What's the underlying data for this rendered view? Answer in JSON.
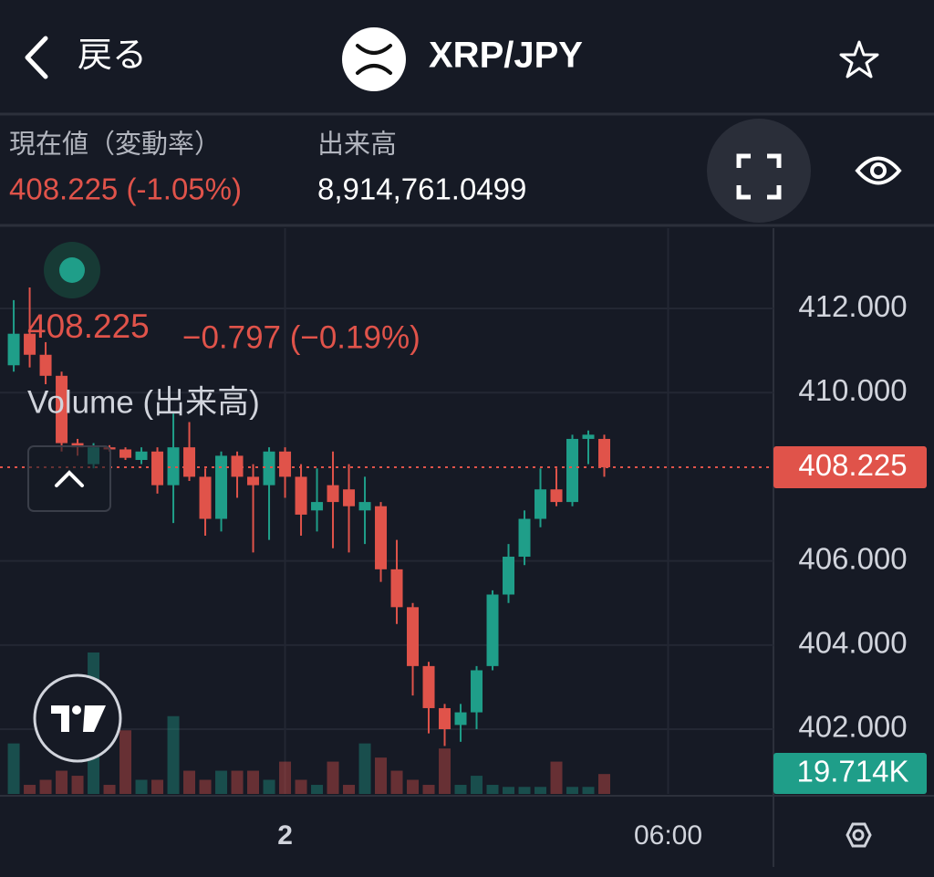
{
  "header": {
    "back": "戻る",
    "pair": "XRP/JPY"
  },
  "info": {
    "price_label": "現在値（変動率）",
    "price": "408.225 (-1.05%)",
    "volume_label": "出来高",
    "volume": "8,914,761.0499"
  },
  "legend": {
    "change": "−0.797 (−0.19%)",
    "volume": "Volume (出来高)"
  },
  "chart_data": {
    "type": "candlestick",
    "up_color": "#1f9e89",
    "down_color": "#e0534a",
    "open": [
      410.65,
      411.4,
      410.9,
      410.4,
      408.8,
      408.3,
      408.7,
      408.65,
      408.4,
      408.6,
      407.8,
      408.7,
      408.0,
      407.0,
      408.5,
      408.0,
      407.8,
      408.6,
      408.0,
      407.2,
      407.8,
      407.7,
      407.2,
      407.3,
      405.8,
      404.9,
      403.5,
      402.5,
      402.1,
      402.4,
      403.5,
      405.2,
      406.1,
      407.0,
      407.7,
      407.4,
      408.9,
      408.9
    ],
    "high": [
      412.2,
      412.5,
      411.2,
      410.5,
      408.9,
      408.8,
      408.75,
      408.7,
      408.7,
      408.7,
      409.5,
      409.3,
      408.2,
      408.6,
      408.6,
      408.3,
      408.7,
      408.7,
      408.3,
      408.2,
      408.6,
      408.3,
      408.0,
      407.4,
      406.5,
      405.0,
      403.6,
      402.6,
      402.6,
      403.5,
      405.3,
      406.4,
      407.2,
      408.2,
      408.2,
      409.0,
      409.1,
      409.0
    ],
    "low": [
      410.5,
      410.6,
      410.2,
      408.6,
      408.5,
      408.2,
      408.6,
      408.4,
      408.3,
      407.6,
      406.9,
      407.9,
      406.6,
      406.7,
      407.5,
      406.2,
      406.5,
      407.5,
      406.6,
      406.7,
      406.3,
      406.2,
      406.4,
      405.5,
      404.5,
      402.8,
      401.9,
      401.6,
      401.7,
      402.0,
      403.4,
      405.0,
      405.9,
      406.8,
      407.3,
      407.3,
      408.3,
      408.0
    ],
    "close": [
      411.4,
      410.9,
      410.4,
      408.8,
      408.7,
      408.7,
      408.65,
      408.45,
      408.6,
      407.8,
      408.7,
      408.0,
      407.0,
      408.5,
      408.0,
      407.8,
      408.6,
      408.0,
      407.1,
      407.4,
      407.4,
      407.3,
      407.4,
      405.8,
      404.9,
      403.5,
      402.5,
      402.0,
      402.4,
      403.4,
      405.2,
      406.1,
      407.0,
      407.7,
      407.4,
      408.9,
      409.0,
      408.225
    ],
    "volume": [
      50,
      9,
      14,
      23,
      18,
      140,
      9,
      63,
      14,
      14,
      77,
      23,
      14,
      23,
      23,
      23,
      14,
      32,
      14,
      9,
      32,
      9,
      50,
      36,
      23,
      14,
      9,
      45,
      9,
      18,
      9,
      7,
      7,
      7,
      32,
      7,
      7,
      19.714
    ],
    "volume_lim": [
      0,
      140
    ],
    "volume_last_label": "19.714K",
    "xlim": [
      -0.86,
      47.6
    ],
    "xticks": [
      {
        "value": 17,
        "label": "2"
      },
      {
        "value": 41,
        "label": "06:00"
      }
    ],
    "ylim": [
      400.46,
      413.91
    ],
    "yticks": [
      {
        "value": 402,
        "label": "402.000"
      },
      {
        "value": 404,
        "label": "404.000"
      },
      {
        "value": 406,
        "label": "406.000"
      },
      {
        "value": 410,
        "label": "410.000"
      },
      {
        "value": 412,
        "label": "412.000"
      }
    ],
    "grid": true
  }
}
